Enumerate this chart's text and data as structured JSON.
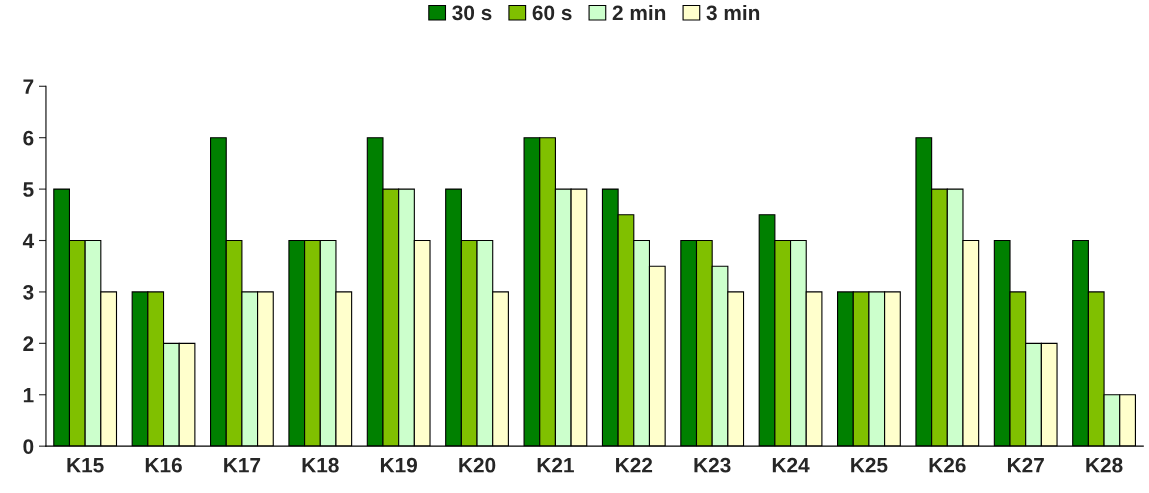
{
  "chart_data": {
    "type": "bar",
    "categories": [
      "K15",
      "K16",
      "K17",
      "K18",
      "K19",
      "K20",
      "K21",
      "K22",
      "K23",
      "K24",
      "K25",
      "K26",
      "K27",
      "K28"
    ],
    "series": [
      {
        "name": "30 s",
        "color": "#008000",
        "values": [
          5,
          3,
          6,
          4,
          6,
          5,
          6,
          5,
          4,
          4.5,
          3,
          6,
          4,
          4
        ]
      },
      {
        "name": "60 s",
        "color": "#80c000",
        "values": [
          4,
          3,
          4,
          4,
          5,
          4,
          6,
          4.5,
          4,
          4,
          3,
          5,
          3,
          3
        ]
      },
      {
        "name": "2 min",
        "color": "#ccffcc",
        "values": [
          4,
          2,
          3,
          4,
          5,
          4,
          5,
          4,
          3.5,
          4,
          3,
          5,
          2,
          1
        ]
      },
      {
        "name": "3 min",
        "color": "#ffffcc",
        "values": [
          3,
          2,
          3,
          3,
          4,
          3,
          5,
          3.5,
          3,
          3,
          3,
          4,
          2,
          1
        ]
      }
    ],
    "ylim": [
      0,
      7
    ],
    "yticks": [
      0,
      1,
      2,
      3,
      4,
      5,
      6,
      7
    ],
    "grid": false,
    "legend": "top"
  }
}
